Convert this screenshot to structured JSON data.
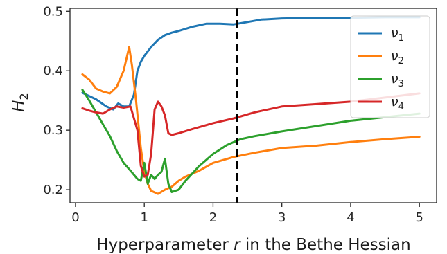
{
  "chart_data": {
    "type": "line",
    "title": "",
    "xlabel": "Hyperparameter r in the Bethe Hessian",
    "xlabel_parts": {
      "before": "Hyperparameter ",
      "var": "r",
      "after": " in the Bethe Hessian"
    },
    "ylabel_main": "H",
    "ylabel_sub": "2",
    "xlim": [
      -0.08,
      5.25
    ],
    "ylim": [
      0.178,
      0.505
    ],
    "xticks": [
      0,
      1,
      2,
      3,
      4,
      5
    ],
    "xtick_labels": [
      "0",
      "1",
      "2",
      "3",
      "4",
      "5"
    ],
    "yticks": [
      0.2,
      0.3,
      0.4,
      0.5
    ],
    "ytick_labels": [
      "0.2",
      "0.3",
      "0.4",
      "0.5"
    ],
    "grid": false,
    "legend_position": "top-right",
    "vline": {
      "x": 2.35,
      "style": "dashed",
      "color": "#000000"
    },
    "series": [
      {
        "name": "ν1",
        "name_main": "ν",
        "name_sub": "1",
        "color": "#1f77b4",
        "x": [
          0.1,
          0.3,
          0.45,
          0.55,
          0.62,
          0.7,
          0.78,
          0.85,
          0.9,
          0.95,
          1.0,
          1.1,
          1.2,
          1.3,
          1.4,
          1.5,
          1.7,
          1.9,
          2.1,
          2.3,
          2.5,
          2.7,
          3.0,
          3.5,
          4.0,
          4.5,
          5.0
        ],
        "y": [
          0.363,
          0.352,
          0.34,
          0.335,
          0.345,
          0.34,
          0.34,
          0.36,
          0.4,
          0.415,
          0.425,
          0.44,
          0.452,
          0.46,
          0.464,
          0.467,
          0.474,
          0.479,
          0.479,
          0.478,
          0.482,
          0.486,
          0.488,
          0.489,
          0.489,
          0.49,
          0.49
        ]
      },
      {
        "name": "ν2",
        "name_main": "ν",
        "name_sub": "2",
        "color": "#ff7f0e",
        "x": [
          0.1,
          0.2,
          0.3,
          0.4,
          0.5,
          0.6,
          0.7,
          0.78,
          0.82,
          0.88,
          0.95,
          1.0,
          1.05,
          1.1,
          1.2,
          1.3,
          1.4,
          1.5,
          1.6,
          1.8,
          2.0,
          2.3,
          2.6,
          3.0,
          3.5,
          4.0,
          4.5,
          5.0
        ],
        "y": [
          0.394,
          0.385,
          0.37,
          0.365,
          0.362,
          0.373,
          0.4,
          0.44,
          0.41,
          0.35,
          0.27,
          0.23,
          0.21,
          0.198,
          0.193,
          0.2,
          0.205,
          0.215,
          0.222,
          0.232,
          0.245,
          0.255,
          0.262,
          0.27,
          0.274,
          0.28,
          0.285,
          0.289
        ]
      },
      {
        "name": "ν3",
        "name_main": "ν",
        "name_sub": "3",
        "color": "#2ca02c",
        "x": [
          0.1,
          0.2,
          0.3,
          0.4,
          0.5,
          0.6,
          0.7,
          0.8,
          0.9,
          0.95,
          1.0,
          1.05,
          1.1,
          1.15,
          1.2,
          1.25,
          1.3,
          1.35,
          1.4,
          1.5,
          1.6,
          1.8,
          2.0,
          2.2,
          2.4,
          2.6,
          3.0,
          3.5,
          4.0,
          4.5,
          5.0
        ],
        "y": [
          0.368,
          0.35,
          0.33,
          0.31,
          0.29,
          0.265,
          0.245,
          0.232,
          0.218,
          0.215,
          0.245,
          0.21,
          0.225,
          0.218,
          0.225,
          0.23,
          0.252,
          0.21,
          0.196,
          0.2,
          0.215,
          0.24,
          0.26,
          0.275,
          0.285,
          0.29,
          0.298,
          0.307,
          0.316,
          0.322,
          0.328
        ]
      },
      {
        "name": "ν4",
        "name_main": "ν",
        "name_sub": "4",
        "color": "#d62728",
        "x": [
          0.1,
          0.2,
          0.3,
          0.4,
          0.5,
          0.6,
          0.7,
          0.8,
          0.9,
          0.95,
          1.0,
          1.05,
          1.1,
          1.15,
          1.2,
          1.25,
          1.3,
          1.35,
          1.4,
          1.5,
          1.7,
          2.0,
          2.3,
          2.6,
          3.0,
          3.5,
          4.0,
          4.5,
          5.0
        ],
        "y": [
          0.337,
          0.333,
          0.33,
          0.328,
          0.335,
          0.34,
          0.338,
          0.34,
          0.3,
          0.24,
          0.222,
          0.225,
          0.26,
          0.335,
          0.348,
          0.34,
          0.325,
          0.295,
          0.292,
          0.295,
          0.302,
          0.312,
          0.32,
          0.33,
          0.34,
          0.344,
          0.348,
          0.355,
          0.362
        ]
      }
    ]
  }
}
